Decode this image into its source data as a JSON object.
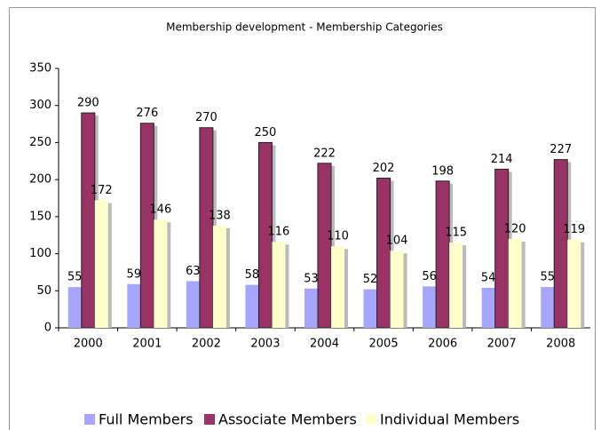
{
  "chart_data": {
    "type": "bar",
    "title": "Membership development - Membership Categories",
    "categories": [
      "2000",
      "2001",
      "2002",
      "2003",
      "2004",
      "2005",
      "2006",
      "2007",
      "2008"
    ],
    "series": [
      {
        "name": "Full Members",
        "color": "#a6a6ff",
        "values": [
          55,
          59,
          63,
          58,
          53,
          52,
          56,
          54,
          55
        ]
      },
      {
        "name": "Associate Members",
        "color": "#993366",
        "values": [
          290,
          276,
          270,
          250,
          222,
          202,
          198,
          214,
          227
        ]
      },
      {
        "name": "Individual Members",
        "color": "#ffffcc",
        "values": [
          172,
          146,
          138,
          116,
          110,
          104,
          115,
          120,
          119
        ]
      }
    ],
    "ylim": [
      0,
      350
    ],
    "yticks": [
      0,
      50,
      100,
      150,
      200,
      250,
      300,
      350
    ],
    "grid": false,
    "legend": "bottom"
  }
}
